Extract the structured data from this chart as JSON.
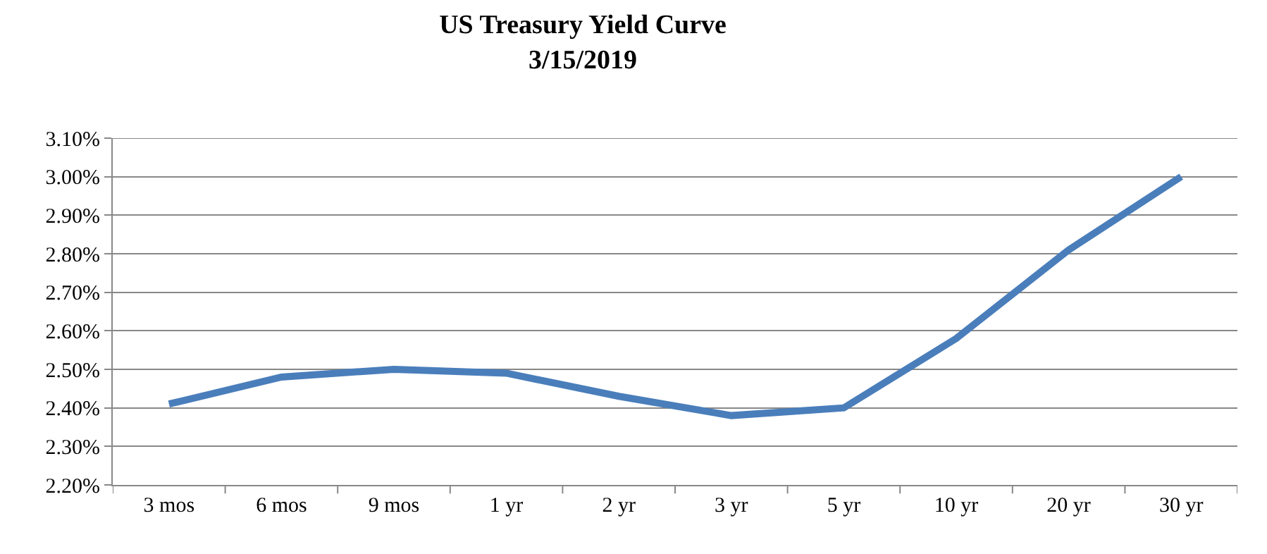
{
  "chart_data": {
    "type": "line",
    "title": "US Treasury Yield Curve",
    "subtitle": "3/15/2019",
    "categories": [
      "3 mos",
      "6 mos",
      "9 mos",
      "1 yr",
      "2 yr",
      "3 yr",
      "5 yr",
      "10 yr",
      "20 yr",
      "30 yr"
    ],
    "series": [
      {
        "color": "#4a7ebb",
        "values": [
          2.41,
          2.48,
          2.5,
          2.49,
          2.43,
          2.38,
          2.4,
          2.58,
          2.81,
          3.0
        ]
      }
    ],
    "ylim": [
      2.2,
      3.1
    ],
    "yticks": [
      {
        "value": 2.2,
        "label": "2.20%"
      },
      {
        "value": 2.3,
        "label": "2.30%"
      },
      {
        "value": 2.4,
        "label": "2.40%"
      },
      {
        "value": 2.5,
        "label": "2.50%"
      },
      {
        "value": 2.6,
        "label": "2.60%"
      },
      {
        "value": 2.7,
        "label": "2.70%"
      },
      {
        "value": 2.8,
        "label": "2.80%"
      },
      {
        "value": 2.9,
        "label": "2.90%"
      },
      {
        "value": 3.0,
        "label": "3.00%"
      },
      {
        "value": 3.1,
        "label": "3.10%"
      }
    ],
    "grid": "y",
    "marker": "none",
    "line_style": "solid"
  }
}
